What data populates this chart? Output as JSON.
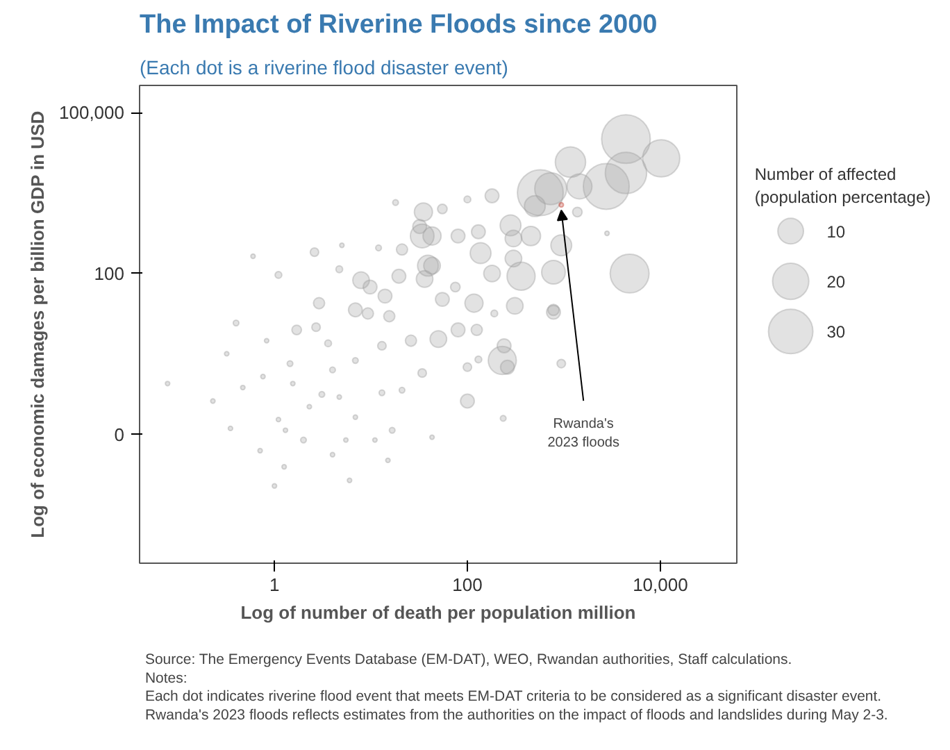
{
  "chart_data": {
    "type": "bubble",
    "title": "The Impact of Riverine Floods since 2000",
    "subtitle": "(Each dot is a riverine flood disaster event)",
    "xlabel": "Log of number of death per population million",
    "ylabel": "Log of economic damages per billion GDP in USD",
    "legend_title": "Number of affected (population percentage)",
    "size_legend": [
      10,
      20,
      30
    ],
    "log": "xy",
    "grid": false,
    "xlim": [
      0.04,
      62000
    ],
    "xticks": [
      1,
      100,
      {
        "value": 10000,
        "label": "10,000"
      }
    ],
    "ylim": [
      0.0004,
      320000
    ],
    "yticks": [
      {
        "value": 0.1,
        "label": "0"
      },
      100,
      {
        "value": 100000,
        "label": "100,000"
      }
    ],
    "series": [
      {
        "color": "#9e9e9e",
        "x": [
          4400,
          10200,
          4400,
          2750,
          1170,
          1450,
          570,
          730,
          500,
          4800,
          780,
          360,
          280,
          180,
          1380,
          2800,
          940,
          455,
          300,
          130,
          137,
          80,
          43,
          43,
          180,
          300,
          117,
          310,
          780,
          55,
          100,
          55,
          75,
          190,
          230,
          260,
          240,
          100,
          940,
          235,
          50,
          80,
          125,
          100,
          130,
          780,
          43,
          35,
          32,
          34,
          39,
          36,
          18,
          21,
          7.9,
          9.8,
          2.6,
          6.9,
          12,
          5,
          9.3,
          15.5,
          1.7,
          2.7,
          3.6,
          13,
          26,
          34,
          21,
          13,
          4,
          1.45,
          6.9,
          0.47,
          0.23,
          0.078,
          3.1,
          4.7,
          2,
          16.6,
          15,
          0.35,
          0.71,
          1.3,
          4,
          1,
          1.26,
          6,
          0.83,
          0.76,
          1.55,
          6.9,
          0.4,
          0.32,
          1.1,
          5.5,
          2.3,
          11,
          19.5,
          14,
          2.9,
          4.7,
          1.1,
          0.6
        ],
        "values": [
          32000,
          14000,
          7500,
          4200,
          11900,
          4200,
          3200,
          3800,
          1800,
          100,
          106,
          89,
          790,
          2800,
          1400,
          560,
          335,
          500,
          450,
          600,
          240,
          500,
          500,
          140,
          100,
          190,
          28,
          25,
          21,
          33,
          2400,
          1600,
          56,
          18,
          2.4,
          1.8,
          4.5,
          0.42,
          2.1,
          0.2,
          6,
          8.9,
          8.9,
          1.8,
          2.5,
          19,
          0.089,
          1400,
          750,
          500,
          140,
          79,
          2100,
          280,
          75,
          56,
          250,
          21,
          300,
          335,
          18,
          16,
          8.9,
          10,
          5,
          4.5,
          5.6,
          1.4,
          0.67,
          0.6,
          1.6,
          2.1,
          2.4,
          0.75,
          0.42,
          0.89,
          0.56,
          0.5,
          0.079,
          0.12,
          0.033,
          0.13,
          0.05,
          0.12,
          0.042,
          0.011,
          0.025,
          0.014,
          5.6,
          1.2,
          0.89,
          0.21,
          12,
          3.2,
          0.19,
          0.079,
          0.33,
          0.079,
          89,
          38,
          28,
          120,
          94,
          210
        ],
        "sizes": [
          36,
          21,
          26,
          32,
          14,
          9.5,
          32,
          15.5,
          6.6,
          23,
          8.5,
          12,
          6.6,
          2.9,
          1.4,
          0.3,
          6.6,
          5.7,
          4.2,
          2.9,
          6.6,
          2.9,
          5,
          4.2,
          4.2,
          4.2,
          5,
          4.2,
          1.9,
          2.9,
          0.7,
          1.4,
          1.4,
          0.7,
          12,
          2.9,
          2.9,
          2.9,
          1.1,
          0.5,
          4.2,
          2.9,
          1.9,
          1.1,
          0.7,
          2.9,
          0.3,
          5,
          2.9,
          8.5,
          6.6,
          4.2,
          0.5,
          1.9,
          4.2,
          2.9,
          1.1,
          2.9,
          0.5,
          0.3,
          1.9,
          1.9,
          1.4,
          1.1,
          0.7,
          1.1,
          1.9,
          1.1,
          0.5,
          0.5,
          0.5,
          0.5,
          0.5,
          0.3,
          0.3,
          0.3,
          0.5,
          0.3,
          0.5,
          0.5,
          0.3,
          0.3,
          0.3,
          0.3,
          0.3,
          0.3,
          0.3,
          0.3,
          0.3,
          0.3,
          0.3,
          0.3,
          0.5,
          0.3,
          0.3,
          0.3,
          0.3,
          0.3,
          2.9,
          2.9,
          1.9,
          0.7,
          0.7,
          0.3
        ]
      },
      {
        "color": "#c0392b",
        "x": [
          940
        ],
        "values": [
          1900
        ],
        "sizes": [
          0.3
        ]
      }
    ],
    "annotations": [
      {
        "text": "Rwanda's\n2023 floods",
        "x": 940,
        "y": 1900
      },
      "Source: The Emergency Events Database (EM-DAT), WEO, Rwandan authorities, Staff calculations.",
      "Notes:",
      "Each dot indicates riverine flood event that meets EM-DAT criteria to be considered as a significant disaster event.",
      "Rwanda's 2023 floods reflects estimates from the authorities on the impact of floods and landslides during May 2-3."
    ]
  }
}
